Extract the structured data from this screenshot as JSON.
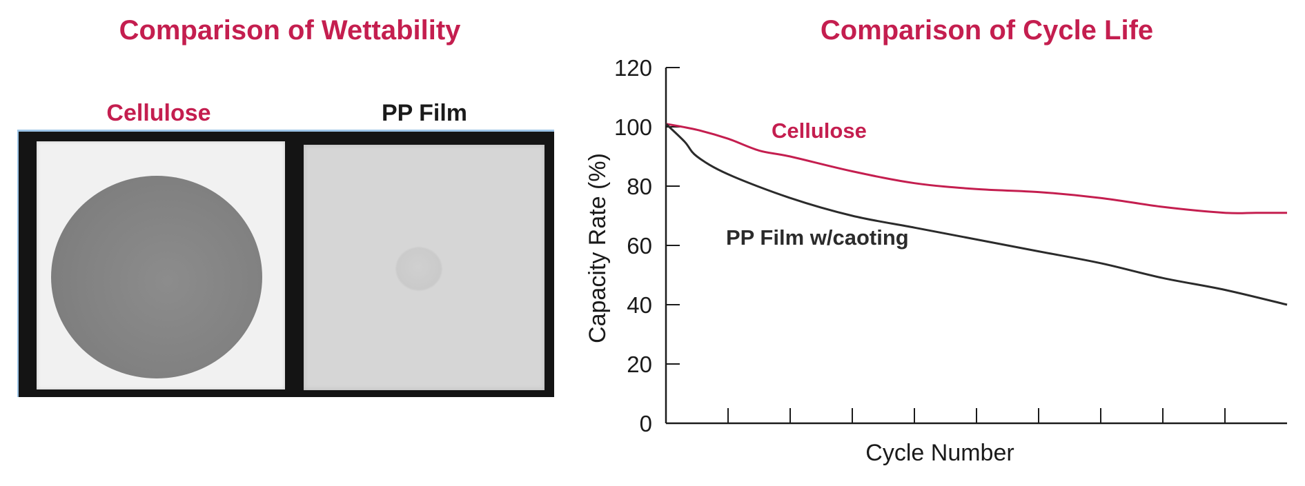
{
  "wettability": {
    "title": "Comparison of Wettability",
    "samples": [
      {
        "name": "Cellulose",
        "color": "#c41e4f"
      },
      {
        "name": "PP Film",
        "color": "#1a1a1a"
      }
    ]
  },
  "chart_data": {
    "type": "line",
    "title": "Comparison of Cycle Life",
    "xlabel": "Cycle Number",
    "ylabel": "Capacity Rate (%)",
    "ylim": [
      0,
      120
    ],
    "yticks": [
      "0",
      "20",
      "40",
      "60",
      "80",
      "100",
      "120"
    ],
    "x_tick_count": 10,
    "x_tick_labels_shown": false,
    "grid": false,
    "series": [
      {
        "name": "Cellulose",
        "color": "#c41e4f",
        "x": [
          0,
          0.5,
          1,
          1.5,
          2,
          3,
          4,
          5,
          6,
          7,
          8,
          9,
          9.5,
          10
        ],
        "values": [
          101,
          99,
          96,
          92,
          90,
          85,
          81,
          79,
          78,
          76,
          73,
          71,
          71,
          71
        ]
      },
      {
        "name": "PP Film w/caoting",
        "color": "#2b2b2b",
        "x": [
          0,
          0.3,
          0.5,
          1,
          2,
          3,
          4,
          5,
          6,
          7,
          8,
          9,
          10
        ],
        "values": [
          101,
          95,
          90,
          84,
          76,
          70,
          66,
          62,
          58,
          54,
          49,
          45,
          40
        ]
      }
    ]
  }
}
